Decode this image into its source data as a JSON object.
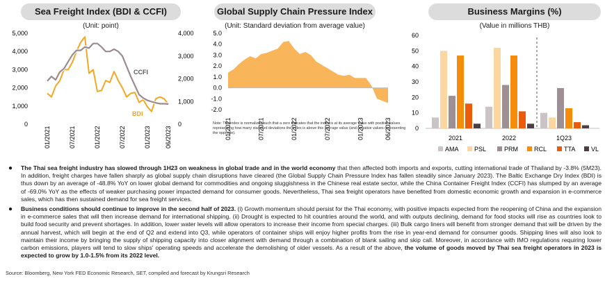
{
  "panels": {
    "sea": {
      "title": "Sea Freight Index (BDI & CCFI)",
      "subtitle": "(Unit: point)"
    },
    "gscpi": {
      "title": "Global Supply Chain Pressure Index",
      "subtitle": "(Unit: Standard deviation from average value)",
      "note": "Note: The index is normalized such that a zero indicates that the index is at its average value with positive values representing how many standard deviations the index is above this average value (and negative values representing the opposite)."
    },
    "margins": {
      "title": "Business Margins (%)",
      "subtitle": "(Value in millions THB)"
    }
  },
  "colors": {
    "bdi": "#f5a623",
    "ccfi": "#9b8a8f",
    "area": "#f8b559",
    "AMA": "#cbc3c6",
    "PSL": "#fcd6a0",
    "PRM": "#9e8f94",
    "RCL": "#f58d0a",
    "TTA": "#ea5b0c",
    "VL": "#4a3f44",
    "pill": "#dcdcdc"
  },
  "chart_data": [
    {
      "type": "line",
      "title": "Sea Freight Index (BDI & CCFI)",
      "x": [
        "01/2021",
        "02/2021",
        "03/2021",
        "04/2021",
        "05/2021",
        "06/2021",
        "07/2021",
        "08/2021",
        "09/2021",
        "10/2021",
        "11/2021",
        "12/2021",
        "01/2022",
        "02/2022",
        "03/2022",
        "04/2022",
        "05/2022",
        "06/2022",
        "07/2022",
        "08/2022",
        "09/2022",
        "10/2022",
        "11/2022",
        "12/2022",
        "01/2023",
        "02/2023",
        "03/2023",
        "04/2023",
        "05/2023",
        "06/2023"
      ],
      "xticks": [
        "01/2021",
        "07/2021",
        "01/2022",
        "07/2022",
        "01/2023",
        "06/2023"
      ],
      "y_left": {
        "ticks": [
          "0",
          "1,000",
          "2,000",
          "3,000",
          "4,000",
          "5,000"
        ],
        "lim": [
          0,
          5000
        ]
      },
      "y_right": {
        "ticks": [
          "0",
          "1,000",
          "2,000",
          "3,000",
          "4,000"
        ],
        "lim": [
          0,
          4000
        ]
      },
      "series": [
        {
          "name": "BDI",
          "axis": "left",
          "values": [
            1700,
            1500,
            2100,
            2400,
            3000,
            3000,
            3400,
            4000,
            4500,
            4800,
            2800,
            3000,
            1800,
            1850,
            2400,
            2300,
            2900,
            2400,
            2000,
            1500,
            1700,
            1750,
            1200,
            1350,
            950,
            700,
            1400,
            1500,
            1400,
            1100
          ]
        },
        {
          "name": "CCFI",
          "axis": "right",
          "values": [
            1900,
            2100,
            1950,
            2300,
            2450,
            2750,
            3050,
            3250,
            3250,
            3400,
            3350,
            3550,
            3550,
            3400,
            3200,
            3200,
            3300,
            3200,
            3000,
            2550,
            2100,
            1700,
            1300,
            1150,
            1050,
            990,
            940,
            900,
            900,
            890
          ]
        }
      ]
    },
    {
      "type": "area",
      "title": "Global Supply Chain Pressure Index",
      "x": [
        "01/2021",
        "02/2021",
        "03/2021",
        "04/2021",
        "05/2021",
        "06/2021",
        "07/2021",
        "08/2021",
        "09/2021",
        "10/2021",
        "11/2021",
        "12/2021",
        "01/2022",
        "02/2022",
        "03/2022",
        "04/2022",
        "05/2022",
        "06/2022",
        "07/2022",
        "08/2022",
        "09/2022",
        "10/2022",
        "11/2022",
        "12/2022",
        "01/2023",
        "02/2023",
        "03/2023",
        "04/2023",
        "05/2023",
        "06/2023"
      ],
      "xticks": [
        "01/2021",
        "07/2021",
        "01/2022",
        "07/2022",
        "01/2023",
        "06/2023"
      ],
      "yticks": [
        "-2.0",
        "-1.0",
        "0.0",
        "1.0",
        "2.0",
        "3.0",
        "4.0",
        "5.0"
      ],
      "ylim": [
        -2.0,
        5.0
      ],
      "series": [
        {
          "name": "",
          "values": [
            1.4,
            1.7,
            2.2,
            2.6,
            2.9,
            2.7,
            3.1,
            3.2,
            3.4,
            3.6,
            4.2,
            4.3,
            3.6,
            3.1,
            3.3,
            3.0,
            2.4,
            2.1,
            1.8,
            1.5,
            1.2,
            1.1,
            1.2,
            0.9,
            0.9,
            0.9,
            0.2,
            -1.0,
            -1.2,
            -1.4
          ]
        }
      ]
    },
    {
      "type": "bar",
      "title": "Business Margins (%)",
      "categories": [
        "2021",
        "2022",
        "1Q23"
      ],
      "yticks": [
        "0",
        "10",
        "20",
        "30",
        "40",
        "50",
        "60"
      ],
      "ylim": [
        0,
        60
      ],
      "series": [
        {
          "name": "AMA",
          "values": [
            7,
            14,
            10
          ]
        },
        {
          "name": "PSL",
          "values": [
            50,
            52,
            7
          ]
        },
        {
          "name": "PRM",
          "values": [
            21,
            28,
            26
          ]
        },
        {
          "name": "RCL",
          "values": [
            47,
            47,
            13
          ]
        },
        {
          "name": "TTA",
          "values": [
            16,
            11,
            4
          ]
        },
        {
          "name": "VL",
          "values": [
            3,
            3,
            2
          ]
        }
      ]
    }
  ],
  "text": {
    "b1_bold": "The Thai sea freight industry has slowed through 1H23 on weakness in global trade and in the world economy",
    "b1_rest": " that then affected both imports and exports, cutting international trade of Thailand by -3.8% (5M23). In addition, freight charges have fallen sharply as global supply chain disruptions have cleared (the Global Supply Chain Pressure Index has fallen steadily since January 2023). The Baltic Exchange Dry Index (BDI) is thus down by an average of -48.8% YoY on lower global demand for commodities and ongoing sluggishness in the Chinese real estate sector, while the China Container Freight Index (CCFI) has slumped by an average of -69.0% YoY as the effects of weaker purchasing power impacted demand for consumer goods. Nevertheless, Thai sea freight operators have benefited from domestic economic growth and expansion in e-commerce sales, which has then sustained demand for sea freight services.",
    "b2_bold": "Business conditions should continue to improve in the second half of 2023.",
    "b2_rest": " (i) Growth momentum should persist for the Thai economy, with positive impacts expected from the reopening of China and the expansion in e-commerce sales that will then increase demand for international shipping. (ii) Drought is expected to hit countries around the world, and with outputs declining, demand for food stocks will rise as countries look to build food security and prevent shortages. In addition, lower water levels will allow operators to increase their income from special charges. (iii) Bulk cargo liners will benefit from stronger demand that will be driven by the annual harvest, which will begin at the end of Q2 and extend into Q3, while operators of container ships will enjoy higher profits from the rise in year-end demand for consumer goods. Shipping lines will also look to maintain their income by bringing the supply of shipping capacity into closer alignment with demand through a combination of blank sailing and skip call. Moreover, in accordance with IMO regulations requiring lower carbon emissions, players will tend to slow ships' operating speeds and accelerate the demolishing of older vessels. As a result of the above, ",
    "b2_end_bold": "the volume of goods moved by Thai sea freight operators in 2023 is expected to grow by 1.0-1.5% from its 2022 level.",
    "source": "Source: Bloomberg, New York FED Economic Research, SET, compiled and forecast by Krungsri Research"
  }
}
